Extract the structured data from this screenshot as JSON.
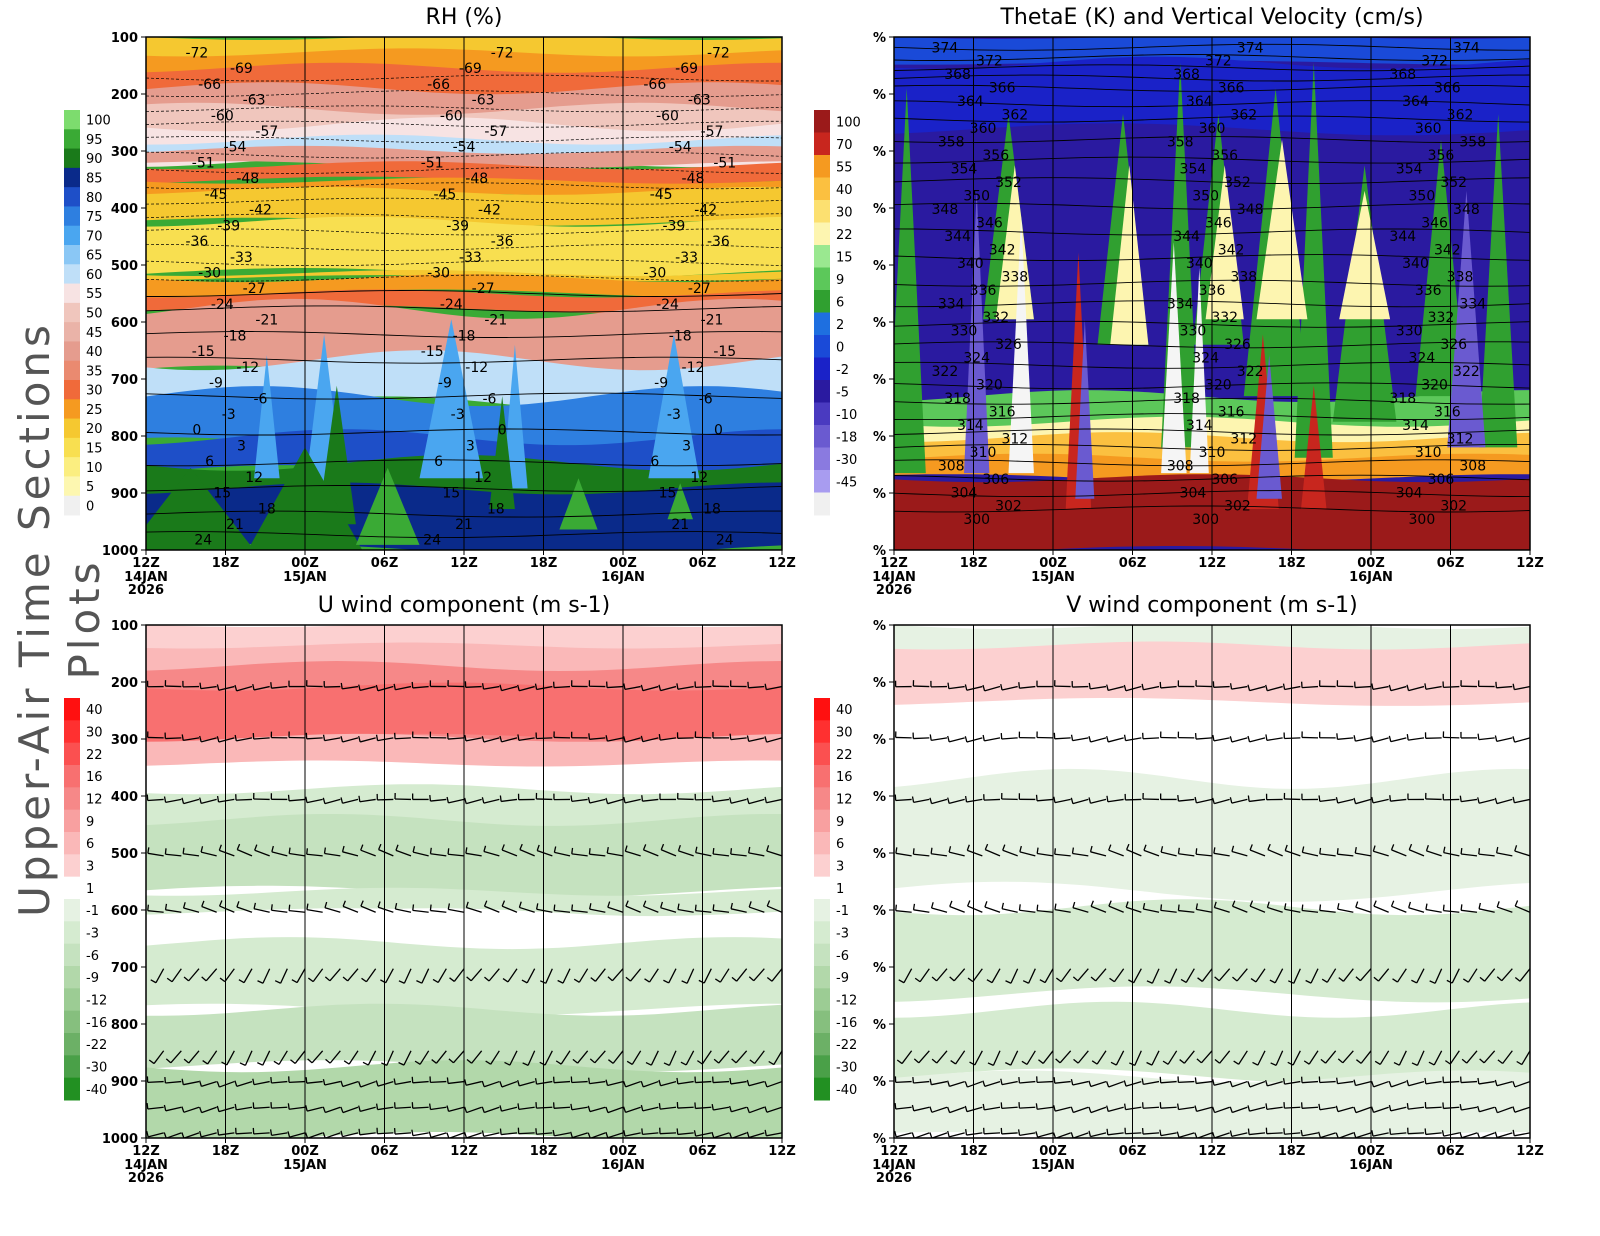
{
  "page_title": "Upper-Air Time Sections Plots",
  "chart_data": [
    {
      "type": "heatmap",
      "title": "RH (%)",
      "x_tick_labels": [
        "12Z",
        "18Z",
        "00Z",
        "06Z",
        "12Z",
        "18Z",
        "00Z",
        "06Z",
        "12Z"
      ],
      "x_date_labels": [
        [
          "14JAN",
          "2026"
        ],
        [],
        [
          "15JAN"
        ],
        [],
        [],
        [],
        [
          "16JAN"
        ],
        [],
        []
      ],
      "y_tick_labels": [
        "100",
        "200",
        "300",
        "400",
        "500",
        "600",
        "700",
        "800",
        "900",
        "1000"
      ],
      "colorbar": [
        {
          "label": "100",
          "color": "#7ddc6e"
        },
        {
          "label": "95",
          "color": "#3aaa35"
        },
        {
          "label": "90",
          "color": "#1a7a1a"
        },
        {
          "label": "85",
          "color": "#0a2a8a"
        },
        {
          "label": "80",
          "color": "#1e4fc8"
        },
        {
          "label": "75",
          "color": "#2e7fe0"
        },
        {
          "label": "70",
          "color": "#4aa6f0"
        },
        {
          "label": "65",
          "color": "#8ac7f5"
        },
        {
          "label": "60",
          "color": "#bfdff8"
        },
        {
          "label": "55",
          "color": "#f7e3e3"
        },
        {
          "label": "50",
          "color": "#f0c6bd"
        },
        {
          "label": "45",
          "color": "#eab3a8"
        },
        {
          "label": "40",
          "color": "#e59c8e"
        },
        {
          "label": "35",
          "color": "#ea8a70"
        },
        {
          "label": "30",
          "color": "#f06a3a"
        },
        {
          "label": "25",
          "color": "#f59a20"
        },
        {
          "label": "20",
          "color": "#f5c830"
        },
        {
          "label": "15",
          "color": "#f8df50"
        },
        {
          "label": "10",
          "color": "#fbee80"
        },
        {
          "label": "5",
          "color": "#fdf7b0"
        },
        {
          "label": "0",
          "color": "#f0f0f0"
        }
      ],
      "contour_labels": [
        "-72",
        "-69",
        "-66",
        "-63",
        "-60",
        "-57",
        "-54",
        "-51",
        "-48",
        "-45",
        "-42",
        "-39",
        "-36",
        "-33",
        "-30",
        "-27",
        "-24",
        "-21",
        "-18",
        "-15",
        "-12",
        "-9",
        "-6",
        "-3",
        "0",
        "3",
        "6",
        "12",
        "15",
        "18",
        "21",
        "24"
      ]
    },
    {
      "type": "heatmap",
      "title": "ThetaE (K) and Vertical Velocity (cm/s)",
      "x_tick_labels": [
        "12Z",
        "18Z",
        "00Z",
        "06Z",
        "12Z",
        "18Z",
        "00Z",
        "06Z",
        "12Z"
      ],
      "x_date_labels": [
        [
          "14JAN",
          "2026"
        ],
        [],
        [
          "15JAN"
        ],
        [],
        [],
        [],
        [
          "16JAN"
        ],
        [],
        []
      ],
      "y_tick_labels": [
        "%",
        "%",
        "%",
        "%",
        "%",
        "%",
        "%",
        "%",
        "%",
        "%"
      ],
      "colorbar": [
        {
          "label": "100",
          "color": "#9b1a1a"
        },
        {
          "label": "70",
          "color": "#c8261e"
        },
        {
          "label": "55",
          "color": "#f59a20"
        },
        {
          "label": "40",
          "color": "#fbc040"
        },
        {
          "label": "30",
          "color": "#fce070"
        },
        {
          "label": "22",
          "color": "#fdf5b0"
        },
        {
          "label": "15",
          "color": "#9ae890"
        },
        {
          "label": "9",
          "color": "#5cc85a"
        },
        {
          "label": "6",
          "color": "#30a030"
        },
        {
          "label": "2",
          "color": "#1e6fe0"
        },
        {
          "label": "0",
          "color": "#1a4ad8"
        },
        {
          "label": "-2",
          "color": "#1a22c8"
        },
        {
          "label": "-5",
          "color": "#2a1aa0"
        },
        {
          "label": "-10",
          "color": "#4a3ac0"
        },
        {
          "label": "-18",
          "color": "#6a5ad0"
        },
        {
          "label": "-30",
          "color": "#8a7ae0"
        },
        {
          "label": "-45",
          "color": "#a89cf0"
        },
        {
          "label": "",
          "color": "#f0f0f0"
        }
      ],
      "contour_labels": [
        "374",
        "372",
        "368",
        "366",
        "364",
        "362",
        "360",
        "358",
        "356",
        "354",
        "352",
        "350",
        "348",
        "346",
        "344",
        "342",
        "340",
        "338",
        "336",
        "334",
        "332",
        "330",
        "326",
        "324",
        "322",
        "320",
        "318",
        "316",
        "314",
        "312",
        "310",
        "308",
        "306",
        "304",
        "302",
        "300"
      ]
    },
    {
      "type": "heatmap",
      "title": "U wind component (m s-1)",
      "x_tick_labels": [
        "12Z",
        "18Z",
        "00Z",
        "06Z",
        "12Z",
        "18Z",
        "00Z",
        "06Z",
        "12Z"
      ],
      "x_date_labels": [
        [
          "14JAN",
          "2026"
        ],
        [],
        [
          "15JAN"
        ],
        [],
        [],
        [],
        [
          "16JAN"
        ],
        [],
        []
      ],
      "y_tick_labels": [
        "100",
        "200",
        "300",
        "400",
        "500",
        "600",
        "700",
        "800",
        "900",
        "1000"
      ],
      "colorbar": [
        {
          "label": "40",
          "color": "#ff1010"
        },
        {
          "label": "30",
          "color": "#ff3030"
        },
        {
          "label": "22",
          "color": "#fb5050"
        },
        {
          "label": "16",
          "color": "#f87070"
        },
        {
          "label": "12",
          "color": "#f68888"
        },
        {
          "label": "9",
          "color": "#f8a0a0"
        },
        {
          "label": "6",
          "color": "#fab8b8"
        },
        {
          "label": "3",
          "color": "#fcd0d0"
        },
        {
          "label": "1",
          "color": "#ffffff"
        },
        {
          "label": "-1",
          "color": "#e6f2e3"
        },
        {
          "label": "-3",
          "color": "#d5ebd0"
        },
        {
          "label": "-6",
          "color": "#c5e2bf"
        },
        {
          "label": "-9",
          "color": "#b2d8aa"
        },
        {
          "label": "-12",
          "color": "#9ccc94"
        },
        {
          "label": "-16",
          "color": "#86bf7e"
        },
        {
          "label": "-22",
          "color": "#6cb066"
        },
        {
          "label": "-30",
          "color": "#4aa048"
        },
        {
          "label": "-40",
          "color": "#229022"
        }
      ]
    },
    {
      "type": "heatmap",
      "title": "V wind component (m s-1)",
      "x_tick_labels": [
        "12Z",
        "18Z",
        "00Z",
        "06Z",
        "12Z",
        "18Z",
        "00Z",
        "06Z",
        "12Z"
      ],
      "x_date_labels": [
        [
          "14JAN",
          "2026"
        ],
        [],
        [
          "15JAN"
        ],
        [],
        [],
        [],
        [
          "16JAN"
        ],
        [],
        []
      ],
      "y_tick_labels": [
        "%",
        "%",
        "%",
        "%",
        "%",
        "%",
        "%",
        "%",
        "%",
        "%"
      ],
      "colorbar": [
        {
          "label": "40",
          "color": "#ff1010"
        },
        {
          "label": "30",
          "color": "#ff3030"
        },
        {
          "label": "22",
          "color": "#fb5050"
        },
        {
          "label": "16",
          "color": "#f87070"
        },
        {
          "label": "12",
          "color": "#f68888"
        },
        {
          "label": "9",
          "color": "#f8a0a0"
        },
        {
          "label": "6",
          "color": "#fab8b8"
        },
        {
          "label": "3",
          "color": "#fcd0d0"
        },
        {
          "label": "1",
          "color": "#ffffff"
        },
        {
          "label": "-1",
          "color": "#e6f2e3"
        },
        {
          "label": "-3",
          "color": "#d5ebd0"
        },
        {
          "label": "-6",
          "color": "#c5e2bf"
        },
        {
          "label": "-9",
          "color": "#b2d8aa"
        },
        {
          "label": "-12",
          "color": "#9ccc94"
        },
        {
          "label": "-16",
          "color": "#86bf7e"
        },
        {
          "label": "-22",
          "color": "#6cb066"
        },
        {
          "label": "-30",
          "color": "#4aa048"
        },
        {
          "label": "-40",
          "color": "#229022"
        }
      ]
    }
  ]
}
